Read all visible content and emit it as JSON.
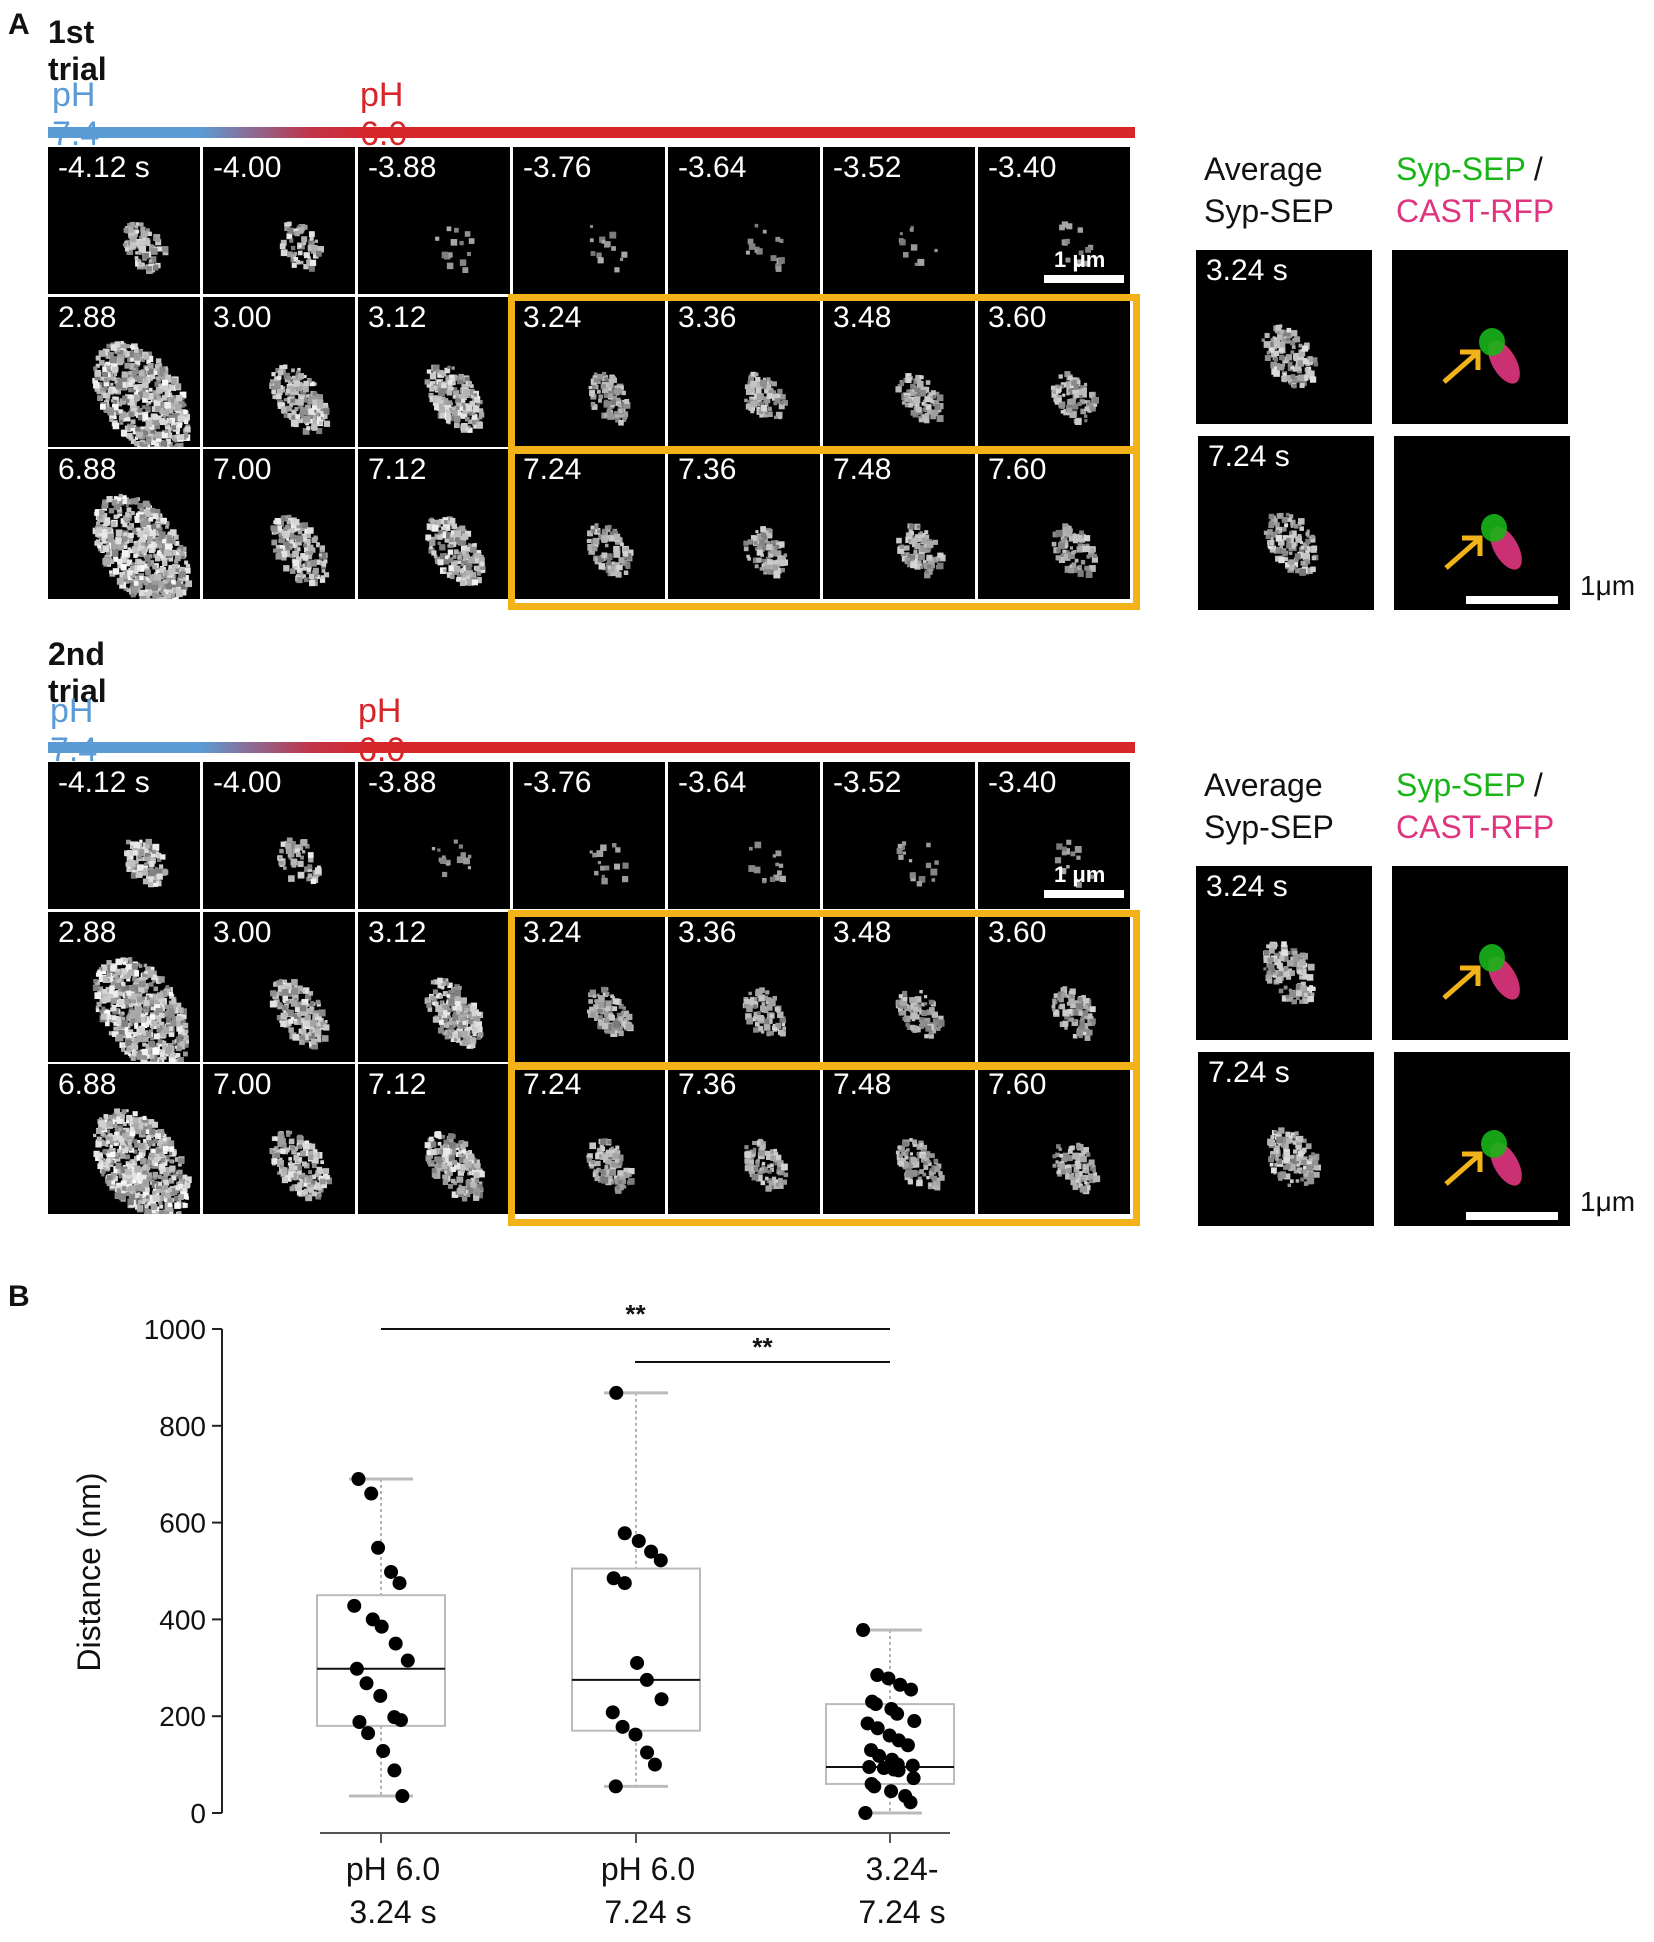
{
  "panel_a": {
    "letter": "A",
    "trials": [
      {
        "title": "1st trial",
        "ph_start": "pH 7.4",
        "ph_end": "pH 6.0",
        "rows": [
          [
            "-4.12 s",
            "-4.00",
            "-3.88",
            "-3.76",
            "-3.64",
            "-3.52",
            "-3.40"
          ],
          [
            "2.88",
            "3.00",
            "3.12",
            "3.24",
            "3.36",
            "3.48",
            "3.60"
          ],
          [
            "6.88",
            "7.00",
            "7.12",
            "7.24",
            "7.36",
            "7.48",
            "7.60"
          ]
        ],
        "scale_label": "1 μm",
        "side": {
          "avg_line1": "Average",
          "avg_line2": "Syp-SEP",
          "merge_green": "Syp-SEP",
          "merge_slash": "/",
          "merge_magenta": "CAST-RFP",
          "time1": "3.24 s",
          "time2": "7.24 s",
          "scale_label": "1μm"
        }
      },
      {
        "title": "2nd trial",
        "ph_start": "pH 7.4",
        "ph_end": "pH 6.0",
        "rows": [
          [
            "-4.12 s",
            "-4.00",
            "-3.88",
            "-3.76",
            "-3.64",
            "-3.52",
            "-3.40"
          ],
          [
            "2.88",
            "3.00",
            "3.12",
            "3.24",
            "3.36",
            "3.48",
            "3.60"
          ],
          [
            "6.88",
            "7.00",
            "7.12",
            "7.24",
            "7.36",
            "7.48",
            "7.60"
          ]
        ],
        "scale_label": "1 μm",
        "side": {
          "avg_line1": "Average",
          "avg_line2": "Syp-SEP",
          "merge_green": "Syp-SEP",
          "merge_slash": "/",
          "merge_magenta": "CAST-RFP",
          "time1": "3.24 s",
          "time2": "7.24 s",
          "scale_label": "1μm"
        }
      }
    ],
    "colors": {
      "highlight": "#f2b31a",
      "ph74": "#5b9bd5",
      "ph60": "#d7262a",
      "arrow": "#f2b31a",
      "green": "#18b418",
      "magenta": "#e0357e"
    }
  },
  "panel_b": {
    "letter": "B"
  },
  "chart_data": {
    "type": "box",
    "ylabel": "Distance (nm)",
    "ylim": [
      0,
      1000
    ],
    "yticks": [
      "0",
      "200",
      "400",
      "600",
      "800",
      "1000"
    ],
    "categories": [
      {
        "line1": "pH 6.0",
        "line2": "3.24 s"
      },
      {
        "line1": "pH 6.0",
        "line2": "7.24 s"
      },
      {
        "line1": "3.24-",
        "line2": "7.24 s"
      }
    ],
    "boxes": [
      {
        "whisker_low": 35,
        "q1": 180,
        "median": 298,
        "q3": 450,
        "whisker_high": 690,
        "points": [
          690,
          660,
          548,
          498,
          475,
          428,
          400,
          385,
          350,
          315,
          298,
          268,
          242,
          198,
          192,
          188,
          165,
          128,
          88,
          35
        ]
      },
      {
        "whisker_low": 55,
        "q1": 170,
        "median": 275,
        "q3": 505,
        "whisker_high": 868,
        "points": [
          868,
          578,
          562,
          540,
          522,
          485,
          475,
          310,
          275,
          235,
          208,
          178,
          162,
          125,
          100,
          55
        ]
      },
      {
        "whisker_low": 0,
        "q1": 60,
        "median": 95,
        "q3": 225,
        "whisker_high": 378,
        "points": [
          378,
          285,
          278,
          265,
          255,
          230,
          225,
          215,
          205,
          190,
          185,
          175,
          160,
          150,
          140,
          130,
          118,
          110,
          100,
          98,
          95,
          93,
          90,
          88,
          72,
          60,
          55,
          45,
          35,
          22,
          0
        ]
      }
    ],
    "significance": [
      {
        "from": 0,
        "to": 2,
        "label": "**"
      },
      {
        "from": 1,
        "to": 2,
        "label": "**"
      }
    ],
    "grid": false
  }
}
